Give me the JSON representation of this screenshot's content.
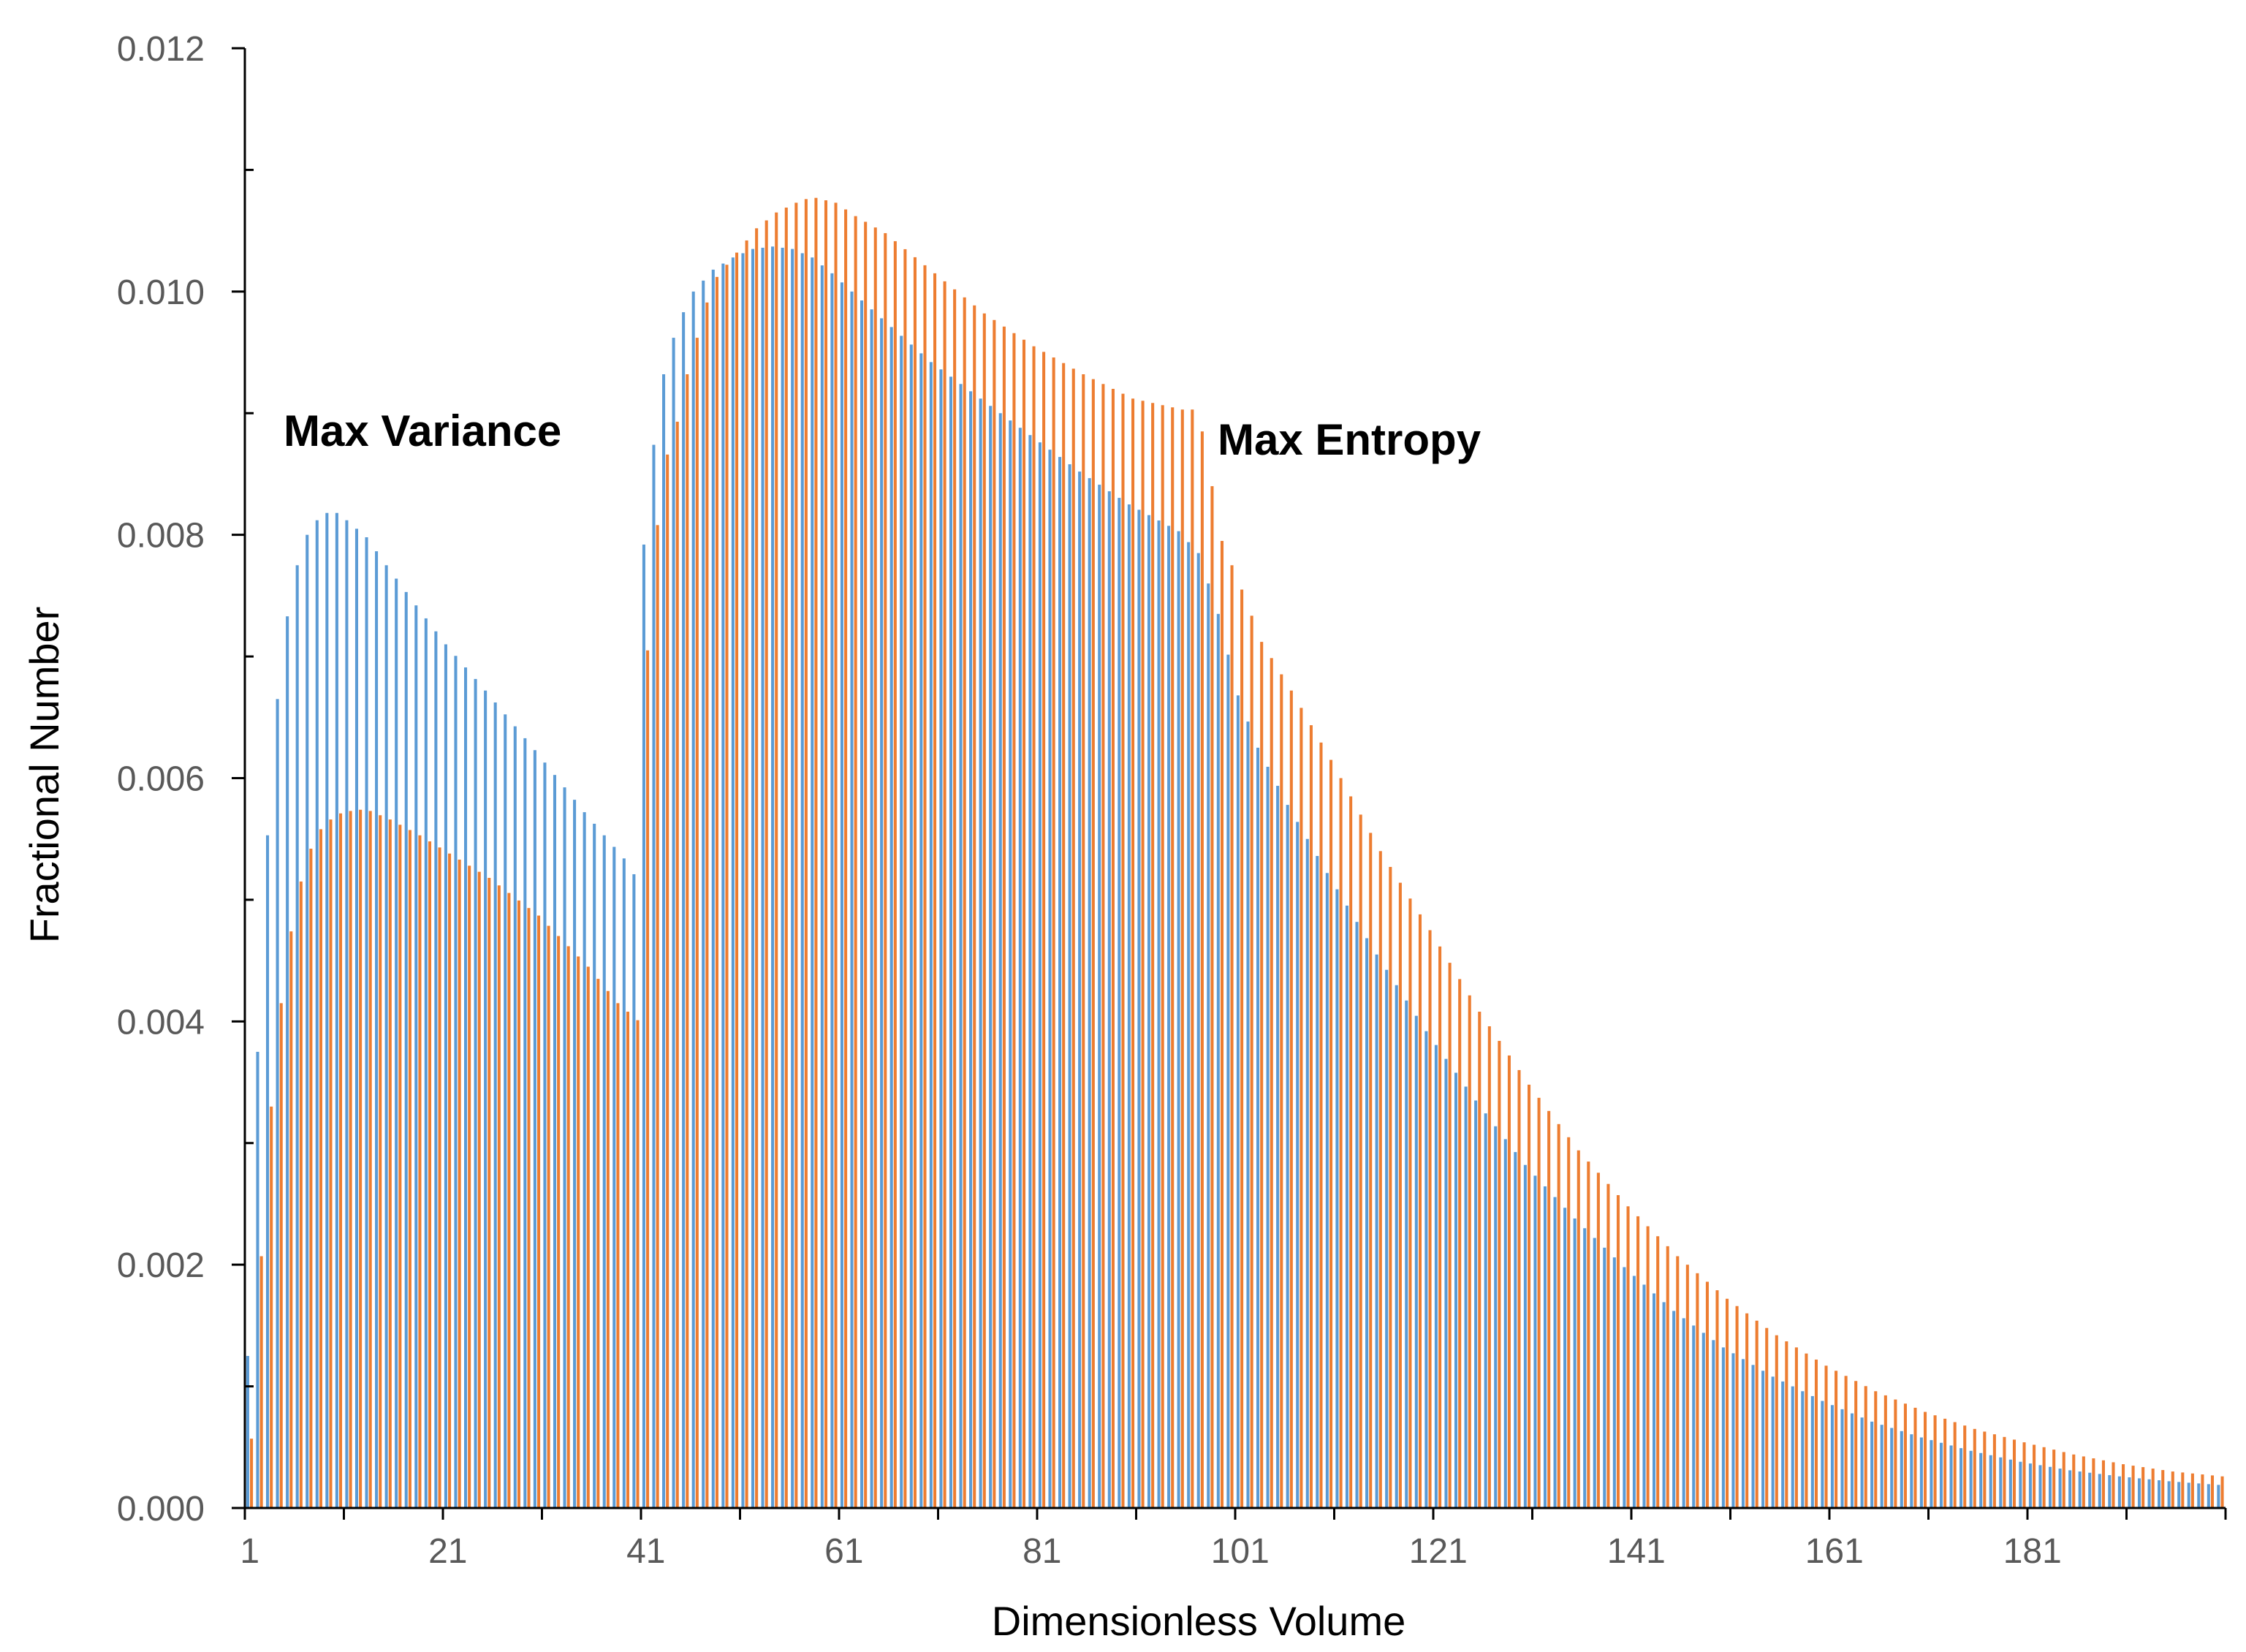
{
  "chart_data": {
    "type": "bar",
    "title": "",
    "xlabel": "Dimensionless Volume",
    "ylabel": "Fractional Number",
    "xlim": [
      1,
      200
    ],
    "ylim": [
      0,
      0.012
    ],
    "x_tick_labels": [
      "1",
      "21",
      "41",
      "61",
      "81",
      "101",
      "121",
      "141",
      "161",
      "181"
    ],
    "y_tick_labels": [
      "0.000",
      "0.002",
      "0.004",
      "0.006",
      "0.008",
      "0.010",
      "0.012"
    ],
    "grid": false,
    "legend": "none",
    "colors": {
      "max_variance": "#5B9BD5",
      "max_entropy": "#ED7D31",
      "axis": "#000000"
    },
    "annotations": [
      {
        "text": "Max Variance",
        "series": "Max Variance"
      },
      {
        "text": "Max Entropy",
        "series": "Max Entropy"
      }
    ],
    "series": [
      {
        "name": "Max Variance",
        "key_points": [
          [
            1,
            0.00125
          ],
          [
            2,
            0.00375
          ],
          [
            3,
            0.00553
          ],
          [
            4,
            0.00665
          ],
          [
            5,
            0.00733
          ],
          [
            6,
            0.00775
          ],
          [
            7,
            0.008
          ],
          [
            8,
            0.00812
          ],
          [
            9,
            0.00818
          ],
          [
            10,
            0.00818
          ],
          [
            11,
            0.00812
          ],
          [
            13,
            0.00798
          ],
          [
            15,
            0.00775
          ],
          [
            18,
            0.00742
          ],
          [
            21,
            0.0071
          ],
          [
            25,
            0.00672
          ],
          [
            30,
            0.00623
          ],
          [
            35,
            0.00572
          ],
          [
            39,
            0.00534
          ],
          [
            40,
            0.00521
          ],
          [
            41,
            0.00792
          ],
          [
            42,
            0.00874
          ],
          [
            43,
            0.00932
          ],
          [
            44,
            0.00962
          ],
          [
            45,
            0.00983
          ],
          [
            46,
            0.01
          ],
          [
            48,
            0.01018
          ],
          [
            50,
            0.01028
          ],
          [
            52,
            0.01035
          ],
          [
            54,
            0.01037
          ],
          [
            56,
            0.01035
          ],
          [
            58,
            0.01028
          ],
          [
            60,
            0.01015
          ],
          [
            62,
            0.01
          ],
          [
            65,
            0.00978
          ],
          [
            70,
            0.00942
          ],
          [
            75,
            0.00912
          ],
          [
            80,
            0.00882
          ],
          [
            85,
            0.00852
          ],
          [
            90,
            0.00825
          ],
          [
            95,
            0.00803
          ],
          [
            97,
            0.00785
          ],
          [
            99,
            0.00735
          ],
          [
            101,
            0.00668
          ],
          [
            103,
            0.00625
          ],
          [
            106,
            0.00578
          ],
          [
            110,
            0.00522
          ],
          [
            115,
            0.00455
          ],
          [
            120,
            0.00392
          ],
          [
            125,
            0.00335
          ],
          [
            130,
            0.00282
          ],
          [
            135,
            0.00238
          ],
          [
            140,
            0.00198
          ],
          [
            145,
            0.00162
          ],
          [
            150,
            0.00132
          ],
          [
            155,
            0.00108
          ],
          [
            160,
            0.00088
          ],
          [
            165,
            0.00071
          ],
          [
            170,
            0.00058
          ],
          [
            175,
            0.00047
          ],
          [
            180,
            0.00038
          ],
          [
            185,
            0.00031
          ],
          [
            190,
            0.00026
          ],
          [
            195,
            0.00022
          ],
          [
            200,
            0.00019
          ]
        ]
      },
      {
        "name": "Max Entropy",
        "key_points": [
          [
            1,
            0.00057
          ],
          [
            2,
            0.00207
          ],
          [
            3,
            0.0033
          ],
          [
            4,
            0.00415
          ],
          [
            5,
            0.00474
          ],
          [
            6,
            0.00515
          ],
          [
            7,
            0.00542
          ],
          [
            8,
            0.00558
          ],
          [
            9,
            0.00566
          ],
          [
            10,
            0.00571
          ],
          [
            11,
            0.00573
          ],
          [
            12,
            0.00574
          ],
          [
            13,
            0.00573
          ],
          [
            15,
            0.00566
          ],
          [
            18,
            0.00553
          ],
          [
            21,
            0.00538
          ],
          [
            25,
            0.00518
          ],
          [
            30,
            0.00487
          ],
          [
            35,
            0.00445
          ],
          [
            38,
            0.00415
          ],
          [
            40,
            0.00401
          ],
          [
            41,
            0.00705
          ],
          [
            42,
            0.00808
          ],
          [
            43,
            0.00866
          ],
          [
            44,
            0.00893
          ],
          [
            45,
            0.00932
          ],
          [
            46,
            0.00962
          ],
          [
            47,
            0.00991
          ],
          [
            48,
            0.01012
          ],
          [
            50,
            0.01032
          ],
          [
            52,
            0.01052
          ],
          [
            54,
            0.01065
          ],
          [
            56,
            0.01073
          ],
          [
            57,
            0.01076
          ],
          [
            58,
            0.01077
          ],
          [
            60,
            0.01073
          ],
          [
            62,
            0.01062
          ],
          [
            65,
            0.01048
          ],
          [
            70,
            0.01015
          ],
          [
            75,
            0.00982
          ],
          [
            80,
            0.00955
          ],
          [
            85,
            0.00932
          ],
          [
            90,
            0.00912
          ],
          [
            95,
            0.00903
          ],
          [
            96,
            0.00903
          ],
          [
            97,
            0.00885
          ],
          [
            99,
            0.00795
          ],
          [
            101,
            0.00755
          ],
          [
            103,
            0.00712
          ],
          [
            106,
            0.00672
          ],
          [
            110,
            0.00615
          ],
          [
            115,
            0.0054
          ],
          [
            120,
            0.00475
          ],
          [
            125,
            0.00408
          ],
          [
            130,
            0.00348
          ],
          [
            135,
            0.00294
          ],
          [
            140,
            0.00248
          ],
          [
            145,
            0.00207
          ],
          [
            150,
            0.00172
          ],
          [
            155,
            0.00142
          ],
          [
            160,
            0.00117
          ],
          [
            165,
            0.00096
          ],
          [
            170,
            0.00079
          ],
          [
            175,
            0.00065
          ],
          [
            180,
            0.00054
          ],
          [
            185,
            0.00044
          ],
          [
            190,
            0.00036
          ],
          [
            195,
            0.0003
          ],
          [
            200,
            0.00026
          ]
        ]
      }
    ]
  }
}
